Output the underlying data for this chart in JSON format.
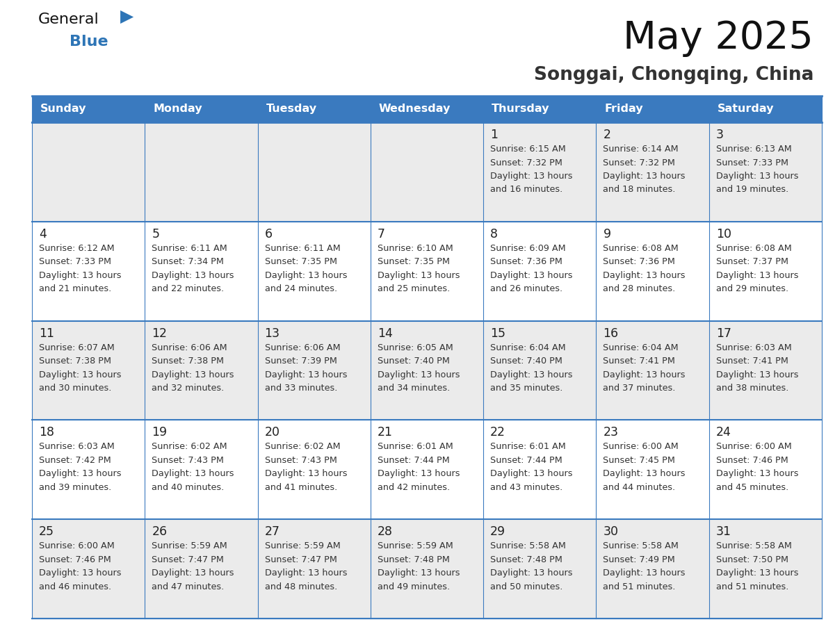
{
  "title": "May 2025",
  "subtitle": "Songgai, Chongqing, China",
  "days_of_week": [
    "Sunday",
    "Monday",
    "Tuesday",
    "Wednesday",
    "Thursday",
    "Friday",
    "Saturday"
  ],
  "header_bg": "#3a7abf",
  "header_text": "#ffffff",
  "cell_bg_odd": "#ebebeb",
  "cell_bg_even": "#ffffff",
  "border_color": "#3a7abf",
  "text_color": "#333333",
  "day_num_color": "#222222",
  "logo_black": "#111111",
  "logo_blue": "#2e75b6",
  "title_color": "#111111",
  "subtitle_color": "#333333",
  "calendar_data": [
    [
      "",
      "",
      "",
      "",
      "1\nSunrise: 6:15 AM\nSunset: 7:32 PM\nDaylight: 13 hours\nand 16 minutes.",
      "2\nSunrise: 6:14 AM\nSunset: 7:32 PM\nDaylight: 13 hours\nand 18 minutes.",
      "3\nSunrise: 6:13 AM\nSunset: 7:33 PM\nDaylight: 13 hours\nand 19 minutes."
    ],
    [
      "4\nSunrise: 6:12 AM\nSunset: 7:33 PM\nDaylight: 13 hours\nand 21 minutes.",
      "5\nSunrise: 6:11 AM\nSunset: 7:34 PM\nDaylight: 13 hours\nand 22 minutes.",
      "6\nSunrise: 6:11 AM\nSunset: 7:35 PM\nDaylight: 13 hours\nand 24 minutes.",
      "7\nSunrise: 6:10 AM\nSunset: 7:35 PM\nDaylight: 13 hours\nand 25 minutes.",
      "8\nSunrise: 6:09 AM\nSunset: 7:36 PM\nDaylight: 13 hours\nand 26 minutes.",
      "9\nSunrise: 6:08 AM\nSunset: 7:36 PM\nDaylight: 13 hours\nand 28 minutes.",
      "10\nSunrise: 6:08 AM\nSunset: 7:37 PM\nDaylight: 13 hours\nand 29 minutes."
    ],
    [
      "11\nSunrise: 6:07 AM\nSunset: 7:38 PM\nDaylight: 13 hours\nand 30 minutes.",
      "12\nSunrise: 6:06 AM\nSunset: 7:38 PM\nDaylight: 13 hours\nand 32 minutes.",
      "13\nSunrise: 6:06 AM\nSunset: 7:39 PM\nDaylight: 13 hours\nand 33 minutes.",
      "14\nSunrise: 6:05 AM\nSunset: 7:40 PM\nDaylight: 13 hours\nand 34 minutes.",
      "15\nSunrise: 6:04 AM\nSunset: 7:40 PM\nDaylight: 13 hours\nand 35 minutes.",
      "16\nSunrise: 6:04 AM\nSunset: 7:41 PM\nDaylight: 13 hours\nand 37 minutes.",
      "17\nSunrise: 6:03 AM\nSunset: 7:41 PM\nDaylight: 13 hours\nand 38 minutes."
    ],
    [
      "18\nSunrise: 6:03 AM\nSunset: 7:42 PM\nDaylight: 13 hours\nand 39 minutes.",
      "19\nSunrise: 6:02 AM\nSunset: 7:43 PM\nDaylight: 13 hours\nand 40 minutes.",
      "20\nSunrise: 6:02 AM\nSunset: 7:43 PM\nDaylight: 13 hours\nand 41 minutes.",
      "21\nSunrise: 6:01 AM\nSunset: 7:44 PM\nDaylight: 13 hours\nand 42 minutes.",
      "22\nSunrise: 6:01 AM\nSunset: 7:44 PM\nDaylight: 13 hours\nand 43 minutes.",
      "23\nSunrise: 6:00 AM\nSunset: 7:45 PM\nDaylight: 13 hours\nand 44 minutes.",
      "24\nSunrise: 6:00 AM\nSunset: 7:46 PM\nDaylight: 13 hours\nand 45 minutes."
    ],
    [
      "25\nSunrise: 6:00 AM\nSunset: 7:46 PM\nDaylight: 13 hours\nand 46 minutes.",
      "26\nSunrise: 5:59 AM\nSunset: 7:47 PM\nDaylight: 13 hours\nand 47 minutes.",
      "27\nSunrise: 5:59 AM\nSunset: 7:47 PM\nDaylight: 13 hours\nand 48 minutes.",
      "28\nSunrise: 5:59 AM\nSunset: 7:48 PM\nDaylight: 13 hours\nand 49 minutes.",
      "29\nSunrise: 5:58 AM\nSunset: 7:48 PM\nDaylight: 13 hours\nand 50 minutes.",
      "30\nSunrise: 5:58 AM\nSunset: 7:49 PM\nDaylight: 13 hours\nand 51 minutes.",
      "31\nSunrise: 5:58 AM\nSunset: 7:50 PM\nDaylight: 13 hours\nand 51 minutes."
    ]
  ],
  "fig_width": 11.88,
  "fig_height": 9.18,
  "dpi": 100
}
